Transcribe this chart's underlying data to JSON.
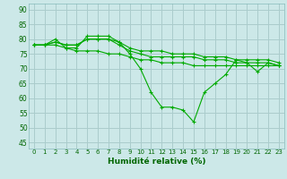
{
  "title": "",
  "xlabel": "Humidité relative (%)",
  "ylabel": "",
  "background_color": "#cce8e8",
  "grid_color": "#aacccc",
  "line_color": "#00aa00",
  "marker_color": "#00aa00",
  "xlim": [
    -0.5,
    23.5
  ],
  "ylim": [
    43,
    92
  ],
  "yticks": [
    45,
    50,
    55,
    60,
    65,
    70,
    75,
    80,
    85,
    90
  ],
  "xticks": [
    0,
    1,
    2,
    3,
    4,
    5,
    6,
    7,
    8,
    9,
    10,
    11,
    12,
    13,
    14,
    15,
    16,
    17,
    18,
    19,
    20,
    21,
    22,
    23
  ],
  "series": [
    [
      78,
      78,
      80,
      77,
      77,
      81,
      81,
      81,
      79,
      75,
      70,
      62,
      57,
      57,
      56,
      52,
      62,
      65,
      68,
      73,
      72,
      69,
      72,
      71
    ],
    [
      78,
      78,
      79,
      78,
      78,
      80,
      80,
      80,
      78,
      76,
      75,
      74,
      74,
      74,
      74,
      74,
      73,
      73,
      73,
      72,
      72,
      72,
      72,
      71
    ],
    [
      78,
      78,
      79,
      78,
      78,
      80,
      80,
      80,
      79,
      77,
      76,
      76,
      76,
      75,
      75,
      75,
      74,
      74,
      74,
      73,
      73,
      73,
      73,
      72
    ],
    [
      78,
      78,
      78,
      77,
      76,
      76,
      76,
      75,
      75,
      74,
      73,
      73,
      72,
      72,
      72,
      71,
      71,
      71,
      71,
      71,
      71,
      71,
      71,
      71
    ]
  ]
}
